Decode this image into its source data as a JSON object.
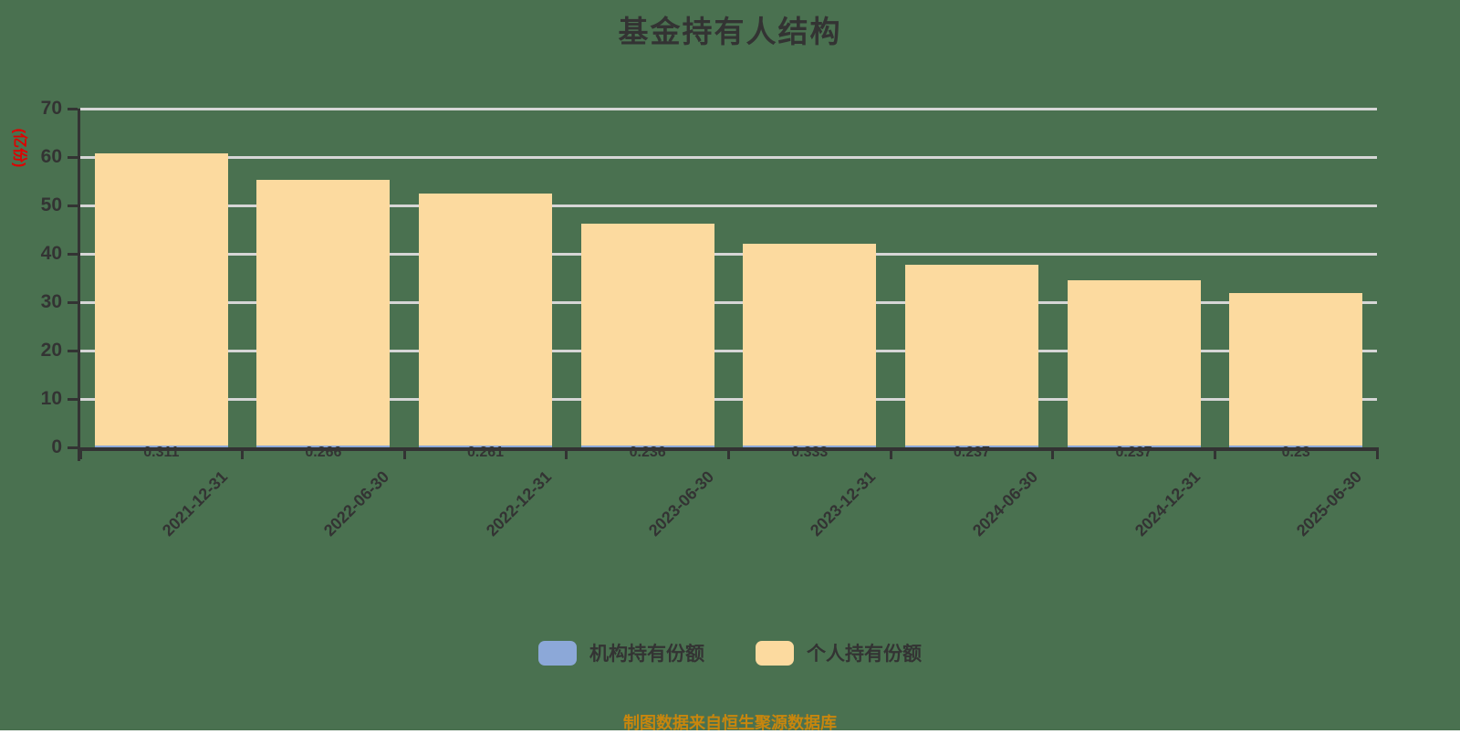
{
  "title": "基金持有人结构",
  "footer": "制图数据来自恒生聚源数据库",
  "y_axis": {
    "name": "(亿份)",
    "min": 0,
    "max": 70,
    "step": 10
  },
  "colors": {
    "background": "#4A7150",
    "grid": "#D6D6D6",
    "axis": "#333333",
    "text": "#333333",
    "y_name": "#E00000",
    "footer": "#C8860D",
    "institutional": "#8CA8D8",
    "individual": "#FCDA9F"
  },
  "chart_data": {
    "type": "bar",
    "stacked": true,
    "grid": true,
    "legend_position": "bottom",
    "ylim": [
      0,
      70
    ],
    "categories": [
      "2021-12-31",
      "2022-06-30",
      "2022-12-31",
      "2023-06-30",
      "2023-12-31",
      "2024-06-30",
      "2024-12-31",
      "2025-06-30"
    ],
    "series": [
      {
        "name": "机构持有份额",
        "color": "#8CA8D8",
        "values": [
          0.311,
          0.266,
          0.261,
          0.236,
          0.333,
          0.237,
          0.237,
          0.23
        ],
        "value_labels": [
          "0.311",
          "0.266",
          "0.261",
          "0.236",
          "0.333",
          "0.237",
          "0.237",
          "0.23"
        ],
        "labels_visible": true
      },
      {
        "name": "个人持有份额",
        "color": "#FCDA9F",
        "values": [
          60.4,
          55.0,
          52.1,
          45.9,
          41.7,
          37.4,
          34.2,
          31.5
        ],
        "labels_visible": false
      }
    ]
  }
}
